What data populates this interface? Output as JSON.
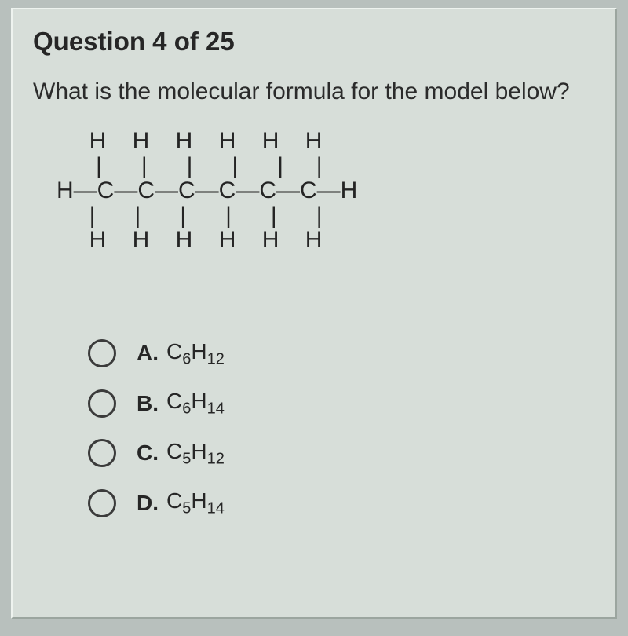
{
  "question": {
    "header": "Question 4 of 25",
    "prompt": "What is the molecular formula for the model below?",
    "structure_lines": [
      "     H    H    H    H    H    H",
      "      |      |      |      |      |     |",
      "H—C—C—C—C—C—C—H",
      "     |      |      |      |      |      |",
      "     H    H    H    H    H    H"
    ]
  },
  "options": [
    {
      "id": "option-a",
      "letter": "A.",
      "c": "6",
      "h": "12"
    },
    {
      "id": "option-b",
      "letter": "B.",
      "c": "6",
      "h": "14"
    },
    {
      "id": "option-c",
      "letter": "C.",
      "c": "5",
      "h": "12"
    },
    {
      "id": "option-d",
      "letter": "D.",
      "c": "5",
      "h": "14"
    }
  ],
  "colors": {
    "background_outer": "#b8c0bd",
    "panel": "#d7ded9",
    "panel_highlight": "#eef3ef",
    "panel_shadow": "#9ba59f",
    "text": "#262626",
    "radio_border": "#3b3b3b"
  }
}
